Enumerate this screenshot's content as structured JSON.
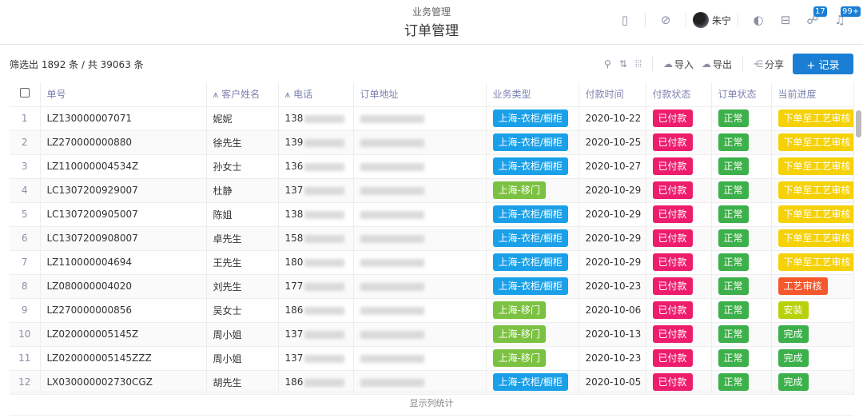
{
  "header": {
    "subtitle": "业务管理",
    "title": "订单管理",
    "user": "朱宁",
    "badge_messages": "17",
    "badge_notifications": "99+"
  },
  "toolbar": {
    "filter_count": "筛选出 1892 条 / 共 39063 条",
    "import": "导入",
    "export": "导出",
    "share": "分享",
    "add_record": "+ 记录"
  },
  "columns": [
    "单号",
    "客户姓名",
    "电话",
    "订单地址",
    "业务类型",
    "付款时间",
    "付款状态",
    "订单状态",
    "当前进度"
  ],
  "colors": {
    "blue": "#1aa0e8",
    "green": "#7cc242",
    "pink": "#ee1c6c",
    "ok": "#3cb04a",
    "yellow": "#f5d108",
    "orange": "#f5582c",
    "lime": "#b9d10b",
    "done": "#3cb04a",
    "accent": "#1a7fd4"
  },
  "rows": [
    {
      "no": "1",
      "id": "LZ130000007071",
      "name": "妮妮",
      "phone": "138",
      "type": "上海-衣柜/橱柜",
      "tc": "blue",
      "date": "2020-10-22",
      "pay": "已付款",
      "status": "正常",
      "progress": "下单至工艺审核",
      "pc": "yellow"
    },
    {
      "no": "2",
      "id": "LZ270000000880",
      "name": "徐先生",
      "phone": "139",
      "type": "上海-衣柜/橱柜",
      "tc": "blue",
      "date": "2020-10-25",
      "pay": "已付款",
      "status": "正常",
      "progress": "下单至工艺审核",
      "pc": "yellow"
    },
    {
      "no": "3",
      "id": "LZ110000004534Z",
      "name": "孙女士",
      "phone": "136",
      "type": "上海-衣柜/橱柜",
      "tc": "blue",
      "date": "2020-10-27",
      "pay": "已付款",
      "status": "正常",
      "progress": "下单至工艺审核",
      "pc": "yellow"
    },
    {
      "no": "4",
      "id": "LC1307200929007",
      "name": "杜静",
      "phone": "137",
      "type": "上海-移门",
      "tc": "green",
      "date": "2020-10-29",
      "pay": "已付款",
      "status": "正常",
      "progress": "下单至工艺审核",
      "pc": "yellow"
    },
    {
      "no": "5",
      "id": "LC1307200905007",
      "name": "陈姐",
      "phone": "138",
      "type": "上海-衣柜/橱柜",
      "tc": "blue",
      "date": "2020-10-29",
      "pay": "已付款",
      "status": "正常",
      "progress": "下单至工艺审核",
      "pc": "yellow"
    },
    {
      "no": "6",
      "id": "LC1307200908007",
      "name": "卓先生",
      "phone": "158",
      "type": "上海-衣柜/橱柜",
      "tc": "blue",
      "date": "2020-10-29",
      "pay": "已付款",
      "status": "正常",
      "progress": "下单至工艺审核",
      "pc": "yellow"
    },
    {
      "no": "7",
      "id": "LZ110000004694",
      "name": "王先生",
      "phone": "180",
      "type": "上海-衣柜/橱柜",
      "tc": "blue",
      "date": "2020-10-29",
      "pay": "已付款",
      "status": "正常",
      "progress": "下单至工艺审核",
      "pc": "yellow"
    },
    {
      "no": "8",
      "id": "LZ080000004020",
      "name": "刘先生",
      "phone": "177",
      "type": "上海-衣柜/橱柜",
      "tc": "blue",
      "date": "2020-10-23",
      "pay": "已付款",
      "status": "正常",
      "progress": "工艺审核",
      "pc": "orange"
    },
    {
      "no": "9",
      "id": "LZ270000000856",
      "name": "吴女士",
      "phone": "186",
      "type": "上海-移门",
      "tc": "green",
      "date": "2020-10-06",
      "pay": "已付款",
      "status": "正常",
      "progress": "安装",
      "pc": "lime"
    },
    {
      "no": "10",
      "id": "LZ020000005145Z",
      "name": "周小姐",
      "phone": "137",
      "type": "上海-移门",
      "tc": "green",
      "date": "2020-10-13",
      "pay": "已付款",
      "status": "正常",
      "progress": "完成",
      "pc": "done"
    },
    {
      "no": "11",
      "id": "LZ020000005145ZZZ",
      "name": "周小姐",
      "phone": "137",
      "type": "上海-移门",
      "tc": "green",
      "date": "2020-10-23",
      "pay": "已付款",
      "status": "正常",
      "progress": "完成",
      "pc": "done"
    },
    {
      "no": "12",
      "id": "LX030000002730CGZ",
      "name": "胡先生",
      "phone": "186",
      "type": "上海-衣柜/橱柜",
      "tc": "blue",
      "date": "2020-10-05",
      "pay": "已付款",
      "status": "正常",
      "progress": "完成",
      "pc": "done"
    }
  ],
  "footer": {
    "label": "显示列统计"
  }
}
